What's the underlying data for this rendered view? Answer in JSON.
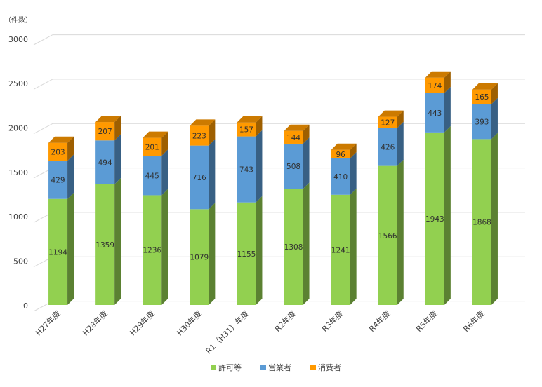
{
  "chart_data": {
    "type": "bar",
    "stacked": true,
    "style": "3d",
    "unit_label": "（件数）",
    "categories": [
      "H27年度",
      "H28年度",
      "H29年度",
      "H30年度",
      "R1（H31）年度",
      "R2年度",
      "R3年度",
      "R4年度",
      "R5年度",
      "R6年度"
    ],
    "series": [
      {
        "name": "許可等",
        "color": "#92D050",
        "values": [
          1194,
          1359,
          1236,
          1079,
          1155,
          1308,
          1241,
          1566,
          1943,
          1868
        ]
      },
      {
        "name": "営業者",
        "color": "#5B9BD5",
        "values": [
          429,
          494,
          445,
          716,
          743,
          508,
          410,
          426,
          443,
          393
        ]
      },
      {
        "name": "消費者",
        "color": "#FF9900",
        "values": [
          203,
          207,
          201,
          223,
          157,
          144,
          96,
          127,
          174,
          165
        ]
      }
    ],
    "ylim": [
      0,
      3000
    ],
    "yticks": [
      0,
      500,
      1000,
      1500,
      2000,
      2500,
      3000
    ],
    "grid": true,
    "legend_position": "bottom"
  }
}
